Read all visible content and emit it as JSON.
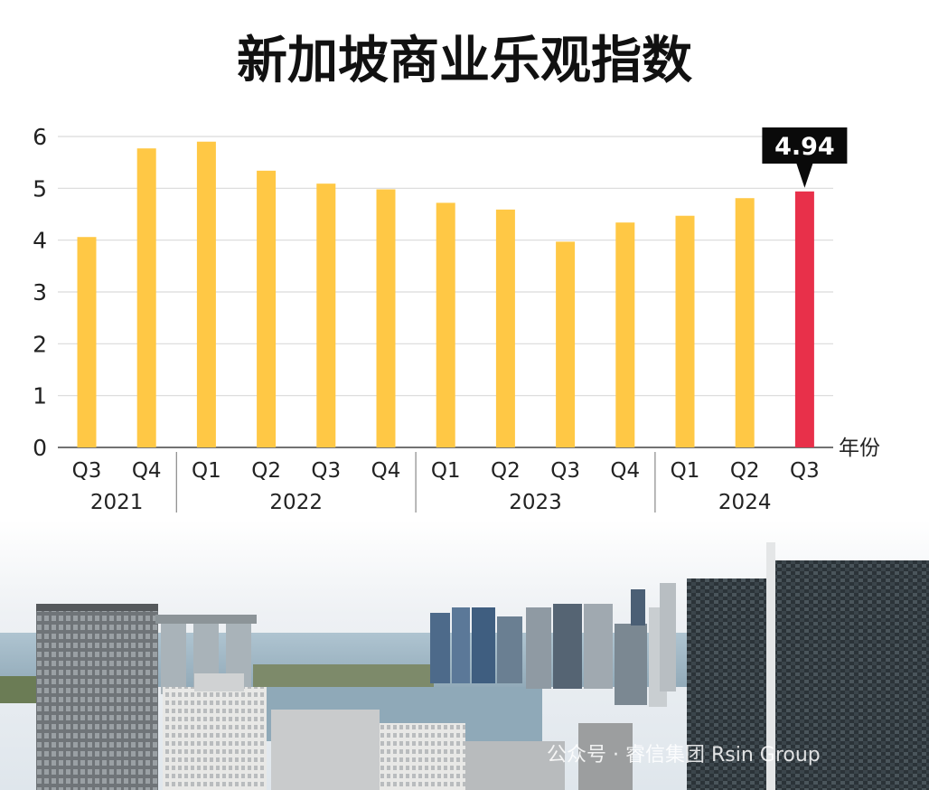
{
  "chart_data": {
    "type": "bar",
    "title": "新加坡商业乐观指数",
    "xlabel": "年份",
    "ylabel": "",
    "ylim": [
      0,
      6
    ],
    "yticks": [
      0,
      1,
      2,
      3,
      4,
      5,
      6
    ],
    "grid": true,
    "categories": [
      "Q3",
      "Q4",
      "Q1",
      "Q2",
      "Q3",
      "Q4",
      "Q1",
      "Q2",
      "Q3",
      "Q4",
      "Q1",
      "Q2",
      "Q3"
    ],
    "years": [
      {
        "label": "2021",
        "start": 0,
        "end": 1
      },
      {
        "label": "2022",
        "start": 2,
        "end": 5
      },
      {
        "label": "2023",
        "start": 6,
        "end": 9
      },
      {
        "label": "2024",
        "start": 10,
        "end": 12
      }
    ],
    "values": [
      4.06,
      5.77,
      5.9,
      5.34,
      5.09,
      4.98,
      4.72,
      4.59,
      3.97,
      4.34,
      4.47,
      4.81,
      4.94
    ],
    "highlight_index": 12,
    "callout": "4.94",
    "colors": {
      "bar": "#FFC845",
      "highlight": "#E8304A",
      "callout_bg": "#0A0A0A",
      "grid": "#D9D9D9",
      "axis": "#444444"
    }
  },
  "watermark": "公众号 · 睿信集团 Rsin Group"
}
